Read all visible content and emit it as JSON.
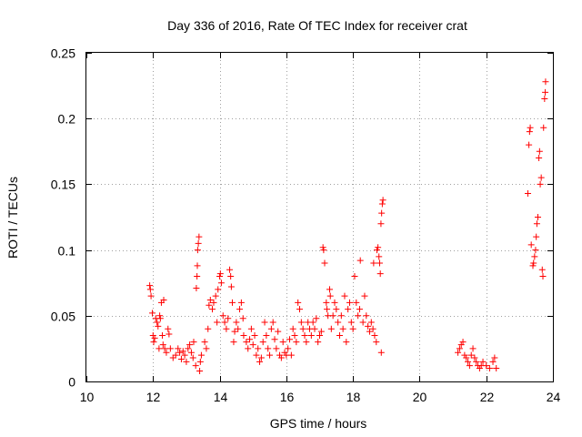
{
  "chart_data": {
    "type": "scatter",
    "title": "Day 336 of 2016, Rate Of TEC Index for receiver crat",
    "xlabel": "GPS time / hours",
    "ylabel": "ROTI / TECUs",
    "xlim": [
      10,
      24
    ],
    "ylim": [
      0,
      0.25
    ],
    "xticks": [
      10,
      12,
      14,
      16,
      18,
      20,
      22,
      24
    ],
    "xtick_labels": [
      "10",
      "12",
      "14",
      "16",
      "18",
      "20",
      "22",
      "24"
    ],
    "yticks": [
      0,
      0.05,
      0.1,
      0.15,
      0.2,
      0.25
    ],
    "ytick_labels": [
      "0",
      "0.05",
      "0.1",
      "0.15",
      "0.2",
      "0.25"
    ],
    "grid": true,
    "marker": "plus",
    "marker_color": "#ff0000",
    "series": [
      {
        "values": [
          [
            11.9,
            0.073
          ],
          [
            11.92,
            0.07
          ],
          [
            11.94,
            0.065
          ],
          [
            11.98,
            0.052
          ],
          [
            12.0,
            0.035
          ],
          [
            12.02,
            0.03
          ],
          [
            12.05,
            0.033
          ],
          [
            12.08,
            0.048
          ],
          [
            12.12,
            0.045
          ],
          [
            12.15,
            0.042
          ],
          [
            12.18,
            0.025
          ],
          [
            12.2,
            0.05
          ],
          [
            12.22,
            0.048
          ],
          [
            12.25,
            0.06
          ],
          [
            12.28,
            0.035
          ],
          [
            12.3,
            0.028
          ],
          [
            12.32,
            0.062
          ],
          [
            12.35,
            0.025
          ],
          [
            12.4,
            0.022
          ],
          [
            12.45,
            0.04
          ],
          [
            12.48,
            0.036
          ],
          [
            12.52,
            0.025
          ],
          [
            12.6,
            0.018
          ],
          [
            12.68,
            0.02
          ],
          [
            12.75,
            0.025
          ],
          [
            12.8,
            0.022
          ],
          [
            12.85,
            0.017
          ],
          [
            12.9,
            0.023
          ],
          [
            12.95,
            0.02
          ],
          [
            13.0,
            0.015
          ],
          [
            13.05,
            0.025
          ],
          [
            13.1,
            0.028
          ],
          [
            13.15,
            0.022
          ],
          [
            13.2,
            0.018
          ],
          [
            13.22,
            0.03
          ],
          [
            13.28,
            0.012
          ],
          [
            13.3,
            0.071
          ],
          [
            13.32,
            0.08
          ],
          [
            13.33,
            0.088
          ],
          [
            13.34,
            0.1
          ],
          [
            13.36,
            0.105
          ],
          [
            13.38,
            0.11
          ],
          [
            13.4,
            0.008
          ],
          [
            13.42,
            0.015
          ],
          [
            13.45,
            0.02
          ],
          [
            13.55,
            0.03
          ],
          [
            13.6,
            0.025
          ],
          [
            13.65,
            0.04
          ],
          [
            13.68,
            0.058
          ],
          [
            13.72,
            0.062
          ],
          [
            13.78,
            0.055
          ],
          [
            13.82,
            0.06
          ],
          [
            13.88,
            0.065
          ],
          [
            13.92,
            0.045
          ],
          [
            13.95,
            0.07
          ],
          [
            14.0,
            0.08
          ],
          [
            14.02,
            0.082
          ],
          [
            14.05,
            0.075
          ],
          [
            14.1,
            0.05
          ],
          [
            14.15,
            0.045
          ],
          [
            14.2,
            0.04
          ],
          [
            14.25,
            0.048
          ],
          [
            14.3,
            0.085
          ],
          [
            14.33,
            0.08
          ],
          [
            14.35,
            0.072
          ],
          [
            14.38,
            0.06
          ],
          [
            14.42,
            0.03
          ],
          [
            14.45,
            0.038
          ],
          [
            14.5,
            0.045
          ],
          [
            14.55,
            0.04
          ],
          [
            14.6,
            0.055
          ],
          [
            14.65,
            0.06
          ],
          [
            14.7,
            0.048
          ],
          [
            14.72,
            0.035
          ],
          [
            14.8,
            0.03
          ],
          [
            14.85,
            0.025
          ],
          [
            14.9,
            0.032
          ],
          [
            14.95,
            0.04
          ],
          [
            15.0,
            0.028
          ],
          [
            15.05,
            0.035
          ],
          [
            15.1,
            0.02
          ],
          [
            15.15,
            0.025
          ],
          [
            15.2,
            0.015
          ],
          [
            15.25,
            0.018
          ],
          [
            15.3,
            0.03
          ],
          [
            15.35,
            0.045
          ],
          [
            15.4,
            0.035
          ],
          [
            15.45,
            0.025
          ],
          [
            15.5,
            0.02
          ],
          [
            15.55,
            0.04
          ],
          [
            15.6,
            0.045
          ],
          [
            15.65,
            0.032
          ],
          [
            15.7,
            0.025
          ],
          [
            15.75,
            0.038
          ],
          [
            15.8,
            0.02
          ],
          [
            15.85,
            0.018
          ],
          [
            15.9,
            0.03
          ],
          [
            15.95,
            0.022
          ],
          [
            16.0,
            0.02
          ],
          [
            16.05,
            0.025
          ],
          [
            16.1,
            0.032
          ],
          [
            16.15,
            0.02
          ],
          [
            16.2,
            0.04
          ],
          [
            16.25,
            0.035
          ],
          [
            16.3,
            0.03
          ],
          [
            16.35,
            0.06
          ],
          [
            16.4,
            0.055
          ],
          [
            16.45,
            0.045
          ],
          [
            16.5,
            0.04
          ],
          [
            16.55,
            0.035
          ],
          [
            16.6,
            0.03
          ],
          [
            16.65,
            0.045
          ],
          [
            16.7,
            0.04
          ],
          [
            16.75,
            0.035
          ],
          [
            16.8,
            0.045
          ],
          [
            16.85,
            0.04
          ],
          [
            16.9,
            0.048
          ],
          [
            16.95,
            0.03
          ],
          [
            17.0,
            0.035
          ],
          [
            17.05,
            0.038
          ],
          [
            17.1,
            0.102
          ],
          [
            17.12,
            0.1
          ],
          [
            17.15,
            0.09
          ],
          [
            17.2,
            0.06
          ],
          [
            17.22,
            0.055
          ],
          [
            17.25,
            0.05
          ],
          [
            17.3,
            0.07
          ],
          [
            17.32,
            0.065
          ],
          [
            17.35,
            0.04
          ],
          [
            17.4,
            0.05
          ],
          [
            17.45,
            0.06
          ],
          [
            17.5,
            0.055
          ],
          [
            17.55,
            0.045
          ],
          [
            17.6,
            0.035
          ],
          [
            17.65,
            0.05
          ],
          [
            17.7,
            0.04
          ],
          [
            17.75,
            0.065
          ],
          [
            17.8,
            0.03
          ],
          [
            17.85,
            0.055
          ],
          [
            17.9,
            0.06
          ],
          [
            17.95,
            0.045
          ],
          [
            18.0,
            0.04
          ],
          [
            18.05,
            0.08
          ],
          [
            18.1,
            0.06
          ],
          [
            18.15,
            0.05
          ],
          [
            18.2,
            0.055
          ],
          [
            18.22,
            0.092
          ],
          [
            18.3,
            0.045
          ],
          [
            18.35,
            0.065
          ],
          [
            18.4,
            0.05
          ],
          [
            18.45,
            0.042
          ],
          [
            18.5,
            0.038
          ],
          [
            18.55,
            0.045
          ],
          [
            18.6,
            0.04
          ],
          [
            18.62,
            0.09
          ],
          [
            18.65,
            0.035
          ],
          [
            18.7,
            0.03
          ],
          [
            18.72,
            0.1
          ],
          [
            18.75,
            0.102
          ],
          [
            18.78,
            0.095
          ],
          [
            18.8,
            0.09
          ],
          [
            18.82,
            0.082
          ],
          [
            18.84,
            0.12
          ],
          [
            18.86,
            0.128
          ],
          [
            18.88,
            0.135
          ],
          [
            18.9,
            0.138
          ],
          [
            18.85,
            0.022
          ],
          [
            21.15,
            0.022
          ],
          [
            21.2,
            0.025
          ],
          [
            21.25,
            0.028
          ],
          [
            21.3,
            0.03
          ],
          [
            21.35,
            0.02
          ],
          [
            21.4,
            0.018
          ],
          [
            21.45,
            0.015
          ],
          [
            21.5,
            0.012
          ],
          [
            21.55,
            0.02
          ],
          [
            21.6,
            0.025
          ],
          [
            21.65,
            0.018
          ],
          [
            21.7,
            0.015
          ],
          [
            21.75,
            0.012
          ],
          [
            21.8,
            0.01
          ],
          [
            21.85,
            0.012
          ],
          [
            21.9,
            0.015
          ],
          [
            22.0,
            0.012
          ],
          [
            22.1,
            0.01
          ],
          [
            22.2,
            0.015
          ],
          [
            22.25,
            0.018
          ],
          [
            22.3,
            0.01
          ],
          [
            23.25,
            0.143
          ],
          [
            23.28,
            0.18
          ],
          [
            23.3,
            0.19
          ],
          [
            23.32,
            0.193
          ],
          [
            23.35,
            0.104
          ],
          [
            23.4,
            0.088
          ],
          [
            23.42,
            0.09
          ],
          [
            23.45,
            0.095
          ],
          [
            23.48,
            0.1
          ],
          [
            23.5,
            0.11
          ],
          [
            23.52,
            0.12
          ],
          [
            23.55,
            0.125
          ],
          [
            23.58,
            0.17
          ],
          [
            23.6,
            0.175
          ],
          [
            23.62,
            0.15
          ],
          [
            23.65,
            0.155
          ],
          [
            23.68,
            0.085
          ],
          [
            23.7,
            0.08
          ],
          [
            23.72,
            0.193
          ],
          [
            23.75,
            0.215
          ],
          [
            23.77,
            0.22
          ],
          [
            23.78,
            0.228
          ]
        ]
      }
    ]
  }
}
